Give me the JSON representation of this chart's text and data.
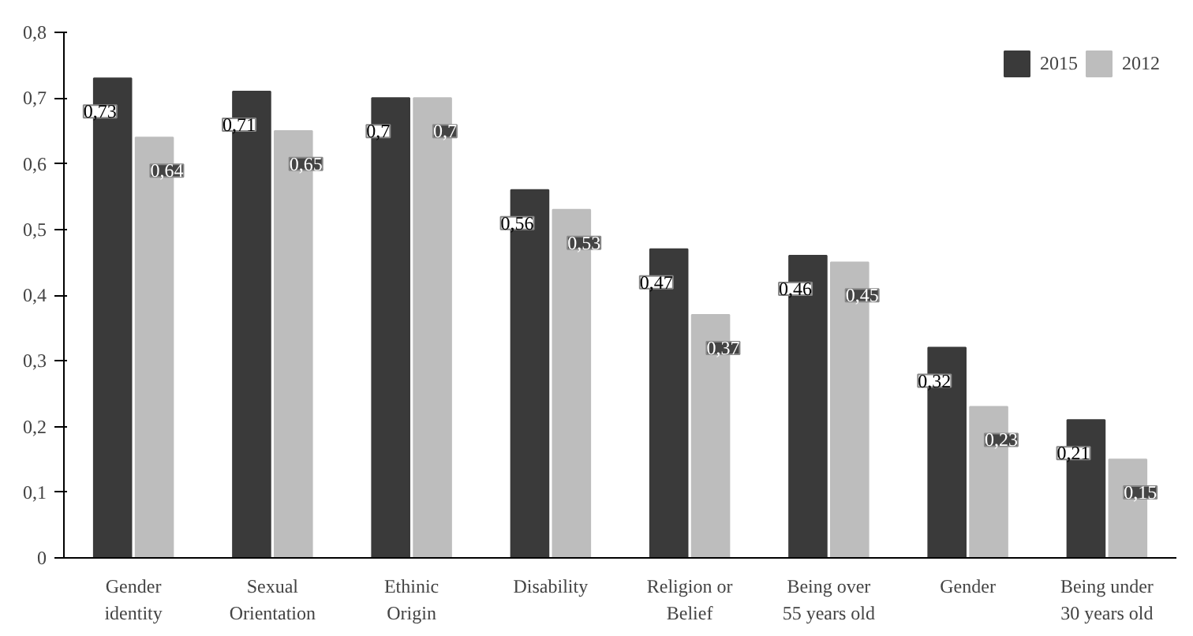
{
  "chart_data": {
    "type": "bar",
    "categories": [
      "Gender identity",
      "Sexual Orientation",
      "Ethinic Origin",
      "Disability",
      "Religion or Belief",
      "Being over 55 years old",
      "Gender",
      "Being under 30 years old"
    ],
    "series": [
      {
        "name": "2015",
        "color": "#3a3a3a",
        "values": [
          0.73,
          0.71,
          0.7,
          0.56,
          0.47,
          0.46,
          0.32,
          0.21
        ],
        "value_labels": [
          "0,73",
          "0,71",
          "0,7",
          "0,56",
          "0,47",
          "0,46",
          "0,32",
          "0,21"
        ]
      },
      {
        "name": "2012",
        "color": "#bdbdbd",
        "values": [
          0.64,
          0.65,
          0.7,
          0.53,
          0.37,
          0.45,
          0.23,
          0.15
        ],
        "value_labels": [
          "0,64",
          "0,65",
          "0,7",
          "0,53",
          "0,37",
          "0,45",
          "0,23",
          "0,15"
        ]
      }
    ],
    "ylim": [
      0,
      0.8
    ],
    "yticks": [
      0,
      {
        "value": 0.1,
        "label": "0,1"
      },
      {
        "value": 0.2,
        "label": "0,2"
      },
      {
        "value": 0.3,
        "label": "0,3"
      },
      {
        "value": 0.4,
        "label": "0,4"
      },
      {
        "value": 0.5,
        "label": "0,5"
      },
      {
        "value": 0.6,
        "label": "0,6"
      },
      {
        "value": 0.7,
        "label": "0,7"
      },
      {
        "value": 0.8,
        "label": "0,8"
      }
    ],
    "grid": false,
    "legend": "top right"
  }
}
